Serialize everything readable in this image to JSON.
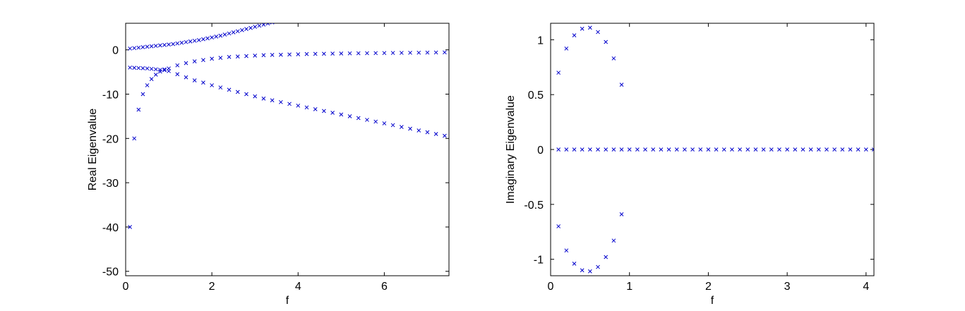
{
  "chart_data": [
    {
      "type": "scatter",
      "xlabel": "f",
      "ylabel": "Real Eigenvalue",
      "xlim": [
        0,
        7.5
      ],
      "ylim": [
        -51,
        6
      ],
      "xticks": [
        0,
        2,
        4,
        6
      ],
      "xtick_labels": [
        "0",
        "2",
        "4",
        "6"
      ],
      "yticks": [
        0,
        -10,
        -20,
        -30,
        -40,
        -50
      ],
      "ytick_labels": [
        "0",
        "-10",
        "-20",
        "-30",
        "-40",
        "-50"
      ],
      "grid": false,
      "marker": "x",
      "color": "#0000cc",
      "series": [
        {
          "x": [
            0.1,
            0.2,
            0.3,
            0.4,
            0.5,
            0.6,
            0.7,
            0.8,
            0.9,
            1.0,
            1.1,
            1.2,
            1.3,
            1.4,
            1.5,
            1.6,
            1.7,
            1.8,
            1.9,
            2.0,
            2.1,
            2.2,
            2.3,
            2.4,
            2.5,
            2.6,
            2.7,
            2.8,
            2.9,
            3.0,
            3.1,
            3.2,
            3.3,
            3.4
          ],
          "y": [
            0.3,
            0.4,
            0.5,
            0.6,
            0.7,
            0.8,
            0.9,
            1.0,
            1.1,
            1.2,
            1.3,
            1.45,
            1.6,
            1.75,
            1.9,
            2.05,
            2.2,
            2.4,
            2.6,
            2.8,
            3.0,
            3.2,
            3.45,
            3.7,
            3.95,
            4.2,
            4.45,
            4.7,
            4.95,
            5.2,
            5.45,
            5.7,
            5.95,
            6.2
          ]
        },
        {
          "x": [
            0.1,
            0.2,
            0.3,
            0.4,
            0.5,
            0.6,
            0.7,
            0.8,
            0.9,
            1.0,
            1.2,
            1.4,
            1.6,
            1.8,
            2.0,
            2.2,
            2.4,
            2.6,
            2.8,
            3.0,
            3.2,
            3.4,
            3.6,
            3.8,
            4.0,
            4.2,
            4.4,
            4.6,
            4.8,
            5.0,
            5.2,
            5.4,
            5.6,
            5.8,
            6.0,
            6.2,
            6.4,
            6.6,
            6.8,
            7.0,
            7.2,
            7.4
          ],
          "y": [
            -40,
            -20,
            -13.5,
            -10,
            -8,
            -6.6,
            -5.6,
            -4.9,
            -4.4,
            -4.2,
            -3.5,
            -3.0,
            -2.6,
            -2.3,
            -2.0,
            -1.8,
            -1.6,
            -1.5,
            -1.4,
            -1.3,
            -1.2,
            -1.15,
            -1.1,
            -1.05,
            -1.0,
            -0.95,
            -0.9,
            -0.88,
            -0.85,
            -0.82,
            -0.8,
            -0.78,
            -0.76,
            -0.74,
            -0.72,
            -0.7,
            -0.68,
            -0.66,
            -0.64,
            -0.62,
            -0.6,
            -0.58
          ]
        },
        {
          "x": [
            0.1,
            0.2,
            0.3,
            0.4,
            0.5,
            0.6,
            0.7,
            0.8,
            0.9,
            1.0,
            1.2,
            1.4,
            1.6,
            1.8,
            2.0,
            2.2,
            2.4,
            2.6,
            2.8,
            3.0,
            3.2,
            3.4,
            3.6,
            3.8,
            4.0,
            4.2,
            4.4,
            4.6,
            4.8,
            5.0,
            5.2,
            5.4,
            5.6,
            5.8,
            6.0,
            6.2,
            6.4,
            6.6,
            6.8,
            7.0,
            7.2,
            7.4
          ],
          "y": [
            -4.0,
            -4.05,
            -4.1,
            -4.15,
            -4.2,
            -4.3,
            -4.4,
            -4.5,
            -4.6,
            -4.8,
            -5.5,
            -6.2,
            -6.9,
            -7.4,
            -8.0,
            -8.5,
            -9.0,
            -9.5,
            -10.0,
            -10.5,
            -11.0,
            -11.4,
            -11.8,
            -12.2,
            -12.6,
            -13.0,
            -13.4,
            -13.8,
            -14.2,
            -14.6,
            -15.0,
            -15.4,
            -15.8,
            -16.2,
            -16.6,
            -17.0,
            -17.4,
            -17.8,
            -18.2,
            -18.6,
            -19.0,
            -19.4
          ]
        }
      ]
    },
    {
      "type": "scatter",
      "xlabel": "f",
      "ylabel": "Imaginary Eigenvalue",
      "xlim": [
        0,
        4.1
      ],
      "ylim": [
        -1.15,
        1.15
      ],
      "xticks": [
        0,
        1,
        2,
        3,
        4
      ],
      "xtick_labels": [
        "0",
        "1",
        "2",
        "3",
        "4"
      ],
      "yticks": [
        1,
        0.5,
        0,
        -0.5,
        -1
      ],
      "ytick_labels": [
        "1",
        "0.5",
        "0",
        "-0.5",
        "-1"
      ],
      "grid": false,
      "marker": "x",
      "color": "#0000cc",
      "series": [
        {
          "x": [
            0.1,
            0.2,
            0.3,
            0.4,
            0.5,
            0.6,
            0.7,
            0.8,
            0.9
          ],
          "y": [
            0.7,
            0.92,
            1.04,
            1.1,
            1.11,
            1.07,
            0.98,
            0.83,
            0.59
          ]
        },
        {
          "x": [
            0.1,
            0.2,
            0.3,
            0.4,
            0.5,
            0.6,
            0.7,
            0.8,
            0.9
          ],
          "y": [
            -0.7,
            -0.92,
            -1.04,
            -1.1,
            -1.11,
            -1.07,
            -0.98,
            -0.83,
            -0.59
          ]
        },
        {
          "x": [
            0.1,
            0.2,
            0.3,
            0.4,
            0.5,
            0.6,
            0.7,
            0.8,
            0.9,
            1.0,
            1.1,
            1.2,
            1.3,
            1.4,
            1.5,
            1.6,
            1.7,
            1.8,
            1.9,
            2.0,
            2.1,
            2.2,
            2.3,
            2.4,
            2.5,
            2.6,
            2.7,
            2.8,
            2.9,
            3.0,
            3.1,
            3.2,
            3.3,
            3.4,
            3.5,
            3.6,
            3.7,
            3.8,
            3.9,
            4.0,
            4.1
          ],
          "y": [
            0,
            0,
            0,
            0,
            0,
            0,
            0,
            0,
            0,
            0,
            0,
            0,
            0,
            0,
            0,
            0,
            0,
            0,
            0,
            0,
            0,
            0,
            0,
            0,
            0,
            0,
            0,
            0,
            0,
            0,
            0,
            0,
            0,
            0,
            0,
            0,
            0,
            0,
            0,
            0,
            0
          ]
        }
      ]
    }
  ]
}
